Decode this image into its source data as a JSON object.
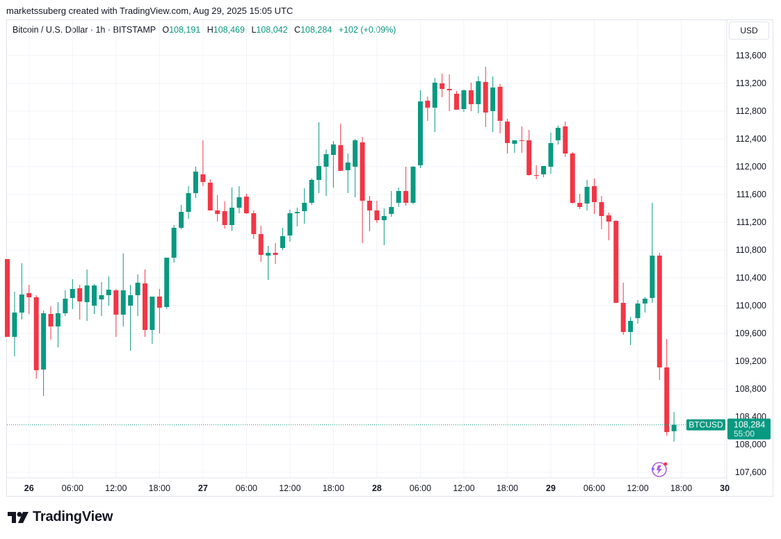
{
  "header": {
    "text": "marketssuberg created with TradingView.com, Aug 29, 2025 15:05 UTC"
  },
  "legend": {
    "symbol": "Bitcoin / U.S. Dollar · 1h · BITSTAMP",
    "o_label": "O",
    "o_value": "108,191",
    "h_label": "H",
    "h_value": "108,469",
    "l_label": "L",
    "l_value": "108,042",
    "c_label": "C",
    "c_value": "108,284",
    "change": "+102 (+0.09%)"
  },
  "currency_button": "USD",
  "price_tag": {
    "ticker": "BTCUSD",
    "price": "108,284",
    "countdown": "55:00"
  },
  "logo": {
    "text": "TradingView"
  },
  "colors": {
    "up": "#089981",
    "down": "#f23645",
    "grid": "#f0f3fa",
    "text": "#131722",
    "tag": "#089981"
  },
  "chart_data": {
    "type": "candlestick",
    "y_ticks": [
      "113,600",
      "113,200",
      "112,800",
      "112,400",
      "112,000",
      "111,600",
      "111,200",
      "110,800",
      "110,400",
      "110,000",
      "109,600",
      "109,200",
      "108,800",
      "108,400",
      "108,000",
      "107,600"
    ],
    "x_ticks": [
      {
        "label": "26",
        "bold": true,
        "index": 3
      },
      {
        "label": "06:00",
        "bold": false,
        "index": 9
      },
      {
        "label": "12:00",
        "bold": false,
        "index": 15
      },
      {
        "label": "18:00",
        "bold": false,
        "index": 21
      },
      {
        "label": "27",
        "bold": true,
        "index": 27
      },
      {
        "label": "06:00",
        "bold": false,
        "index": 33
      },
      {
        "label": "12:00",
        "bold": false,
        "index": 39
      },
      {
        "label": "18:00",
        "bold": false,
        "index": 45
      },
      {
        "label": "28",
        "bold": true,
        "index": 51
      },
      {
        "label": "06:00",
        "bold": false,
        "index": 57
      },
      {
        "label": "12:00",
        "bold": false,
        "index": 63
      },
      {
        "label": "18:00",
        "bold": false,
        "index": 69
      },
      {
        "label": "29",
        "bold": true,
        "index": 75
      },
      {
        "label": "06:00",
        "bold": false,
        "index": 81
      },
      {
        "label": "12:00",
        "bold": false,
        "index": 87
      },
      {
        "label": "18:00",
        "bold": false,
        "index": 93
      },
      {
        "label": "30",
        "bold": true,
        "index": 99
      }
    ],
    "y_range": [
      107300,
      113900
    ],
    "last_price": 108284,
    "candles": [
      {
        "o": 110670,
        "h": 110670,
        "l": 109550,
        "c": 109550
      },
      {
        "o": 109550,
        "h": 110200,
        "l": 109270,
        "c": 109900
      },
      {
        "o": 109900,
        "h": 110610,
        "l": 109800,
        "c": 110160
      },
      {
        "o": 110180,
        "h": 110300,
        "l": 109880,
        "c": 110120
      },
      {
        "o": 110120,
        "h": 110150,
        "l": 108950,
        "c": 109070
      },
      {
        "o": 109080,
        "h": 109930,
        "l": 108700,
        "c": 109890
      },
      {
        "o": 109880,
        "h": 109990,
        "l": 109510,
        "c": 109700
      },
      {
        "o": 109700,
        "h": 110050,
        "l": 109400,
        "c": 109890
      },
      {
        "o": 109890,
        "h": 110220,
        "l": 109850,
        "c": 110100
      },
      {
        "o": 110110,
        "h": 110380,
        "l": 109950,
        "c": 110240
      },
      {
        "o": 110250,
        "h": 110300,
        "l": 109800,
        "c": 110060
      },
      {
        "o": 110050,
        "h": 110520,
        "l": 109780,
        "c": 110290
      },
      {
        "o": 110000,
        "h": 110310,
        "l": 109880,
        "c": 110290
      },
      {
        "o": 110090,
        "h": 110340,
        "l": 109850,
        "c": 110150
      },
      {
        "o": 110150,
        "h": 110420,
        "l": 110000,
        "c": 110230
      },
      {
        "o": 110220,
        "h": 110240,
        "l": 109550,
        "c": 109870
      },
      {
        "o": 109870,
        "h": 110750,
        "l": 109700,
        "c": 110220
      },
      {
        "o": 110000,
        "h": 110300,
        "l": 109350,
        "c": 110150
      },
      {
        "o": 110150,
        "h": 110450,
        "l": 109850,
        "c": 110330
      },
      {
        "o": 110320,
        "h": 110520,
        "l": 109550,
        "c": 109650
      },
      {
        "o": 109650,
        "h": 110130,
        "l": 109450,
        "c": 110130
      },
      {
        "o": 110130,
        "h": 110240,
        "l": 109600,
        "c": 109970
      },
      {
        "o": 109980,
        "h": 110690,
        "l": 109950,
        "c": 110690
      },
      {
        "o": 110690,
        "h": 111160,
        "l": 110620,
        "c": 111120
      },
      {
        "o": 111120,
        "h": 111450,
        "l": 111100,
        "c": 111350
      },
      {
        "o": 111350,
        "h": 111720,
        "l": 111250,
        "c": 111620
      },
      {
        "o": 111620,
        "h": 112000,
        "l": 111550,
        "c": 111930
      },
      {
        "o": 111890,
        "h": 112380,
        "l": 111720,
        "c": 111780
      },
      {
        "o": 111770,
        "h": 111820,
        "l": 111370,
        "c": 111370
      },
      {
        "o": 111370,
        "h": 111590,
        "l": 111210,
        "c": 111320
      },
      {
        "o": 111360,
        "h": 111500,
        "l": 111110,
        "c": 111160
      },
      {
        "o": 111160,
        "h": 111700,
        "l": 111080,
        "c": 111410
      },
      {
        "o": 111410,
        "h": 111720,
        "l": 111330,
        "c": 111560
      },
      {
        "o": 111570,
        "h": 111610,
        "l": 111320,
        "c": 111330
      },
      {
        "o": 111330,
        "h": 111370,
        "l": 110960,
        "c": 111030
      },
      {
        "o": 111030,
        "h": 111150,
        "l": 110630,
        "c": 110730
      },
      {
        "o": 110720,
        "h": 110860,
        "l": 110370,
        "c": 110760
      },
      {
        "o": 110760,
        "h": 110900,
        "l": 110600,
        "c": 110730
      },
      {
        "o": 110830,
        "h": 111120,
        "l": 110800,
        "c": 111000
      },
      {
        "o": 111010,
        "h": 111380,
        "l": 110920,
        "c": 111330
      },
      {
        "o": 111330,
        "h": 111410,
        "l": 111140,
        "c": 111350
      },
      {
        "o": 111360,
        "h": 111690,
        "l": 111180,
        "c": 111480
      },
      {
        "o": 111480,
        "h": 111830,
        "l": 111450,
        "c": 111810
      },
      {
        "o": 111810,
        "h": 112640,
        "l": 111620,
        "c": 112010
      },
      {
        "o": 112000,
        "h": 112250,
        "l": 111580,
        "c": 112180
      },
      {
        "o": 112170,
        "h": 112370,
        "l": 111700,
        "c": 112320
      },
      {
        "o": 112310,
        "h": 112620,
        "l": 111950,
        "c": 111940
      },
      {
        "o": 111950,
        "h": 112190,
        "l": 111620,
        "c": 112060
      },
      {
        "o": 112000,
        "h": 112400,
        "l": 111560,
        "c": 112380
      },
      {
        "o": 112350,
        "h": 112430,
        "l": 110900,
        "c": 111510
      },
      {
        "o": 111510,
        "h": 111580,
        "l": 111070,
        "c": 111370
      },
      {
        "o": 111370,
        "h": 111510,
        "l": 111190,
        "c": 111230
      },
      {
        "o": 111230,
        "h": 111400,
        "l": 110870,
        "c": 111290
      },
      {
        "o": 111320,
        "h": 111650,
        "l": 111280,
        "c": 111420
      },
      {
        "o": 111480,
        "h": 111700,
        "l": 111420,
        "c": 111650
      },
      {
        "o": 111650,
        "h": 112000,
        "l": 111440,
        "c": 111480
      },
      {
        "o": 111480,
        "h": 112010,
        "l": 111460,
        "c": 112000
      },
      {
        "o": 112020,
        "h": 113100,
        "l": 111980,
        "c": 112940
      },
      {
        "o": 112950,
        "h": 113010,
        "l": 112660,
        "c": 112850
      },
      {
        "o": 112850,
        "h": 113280,
        "l": 112500,
        "c": 113210
      },
      {
        "o": 113200,
        "h": 113340,
        "l": 113000,
        "c": 113120
      },
      {
        "o": 113120,
        "h": 113330,
        "l": 112800,
        "c": 113100
      },
      {
        "o": 113050,
        "h": 113090,
        "l": 112830,
        "c": 112820
      },
      {
        "o": 112830,
        "h": 113110,
        "l": 112790,
        "c": 113100
      },
      {
        "o": 113100,
        "h": 113210,
        "l": 112800,
        "c": 112900
      },
      {
        "o": 112900,
        "h": 113300,
        "l": 112770,
        "c": 113230
      },
      {
        "o": 113220,
        "h": 113440,
        "l": 112570,
        "c": 112780
      },
      {
        "o": 112800,
        "h": 113300,
        "l": 112500,
        "c": 113140
      },
      {
        "o": 113150,
        "h": 113190,
        "l": 112480,
        "c": 112660
      },
      {
        "o": 112650,
        "h": 112690,
        "l": 112190,
        "c": 112340
      },
      {
        "o": 112330,
        "h": 112380,
        "l": 112200,
        "c": 112380
      },
      {
        "o": 112380,
        "h": 112580,
        "l": 112200,
        "c": 112370
      },
      {
        "o": 112380,
        "h": 112530,
        "l": 111870,
        "c": 111880
      },
      {
        "o": 111880,
        "h": 112020,
        "l": 111820,
        "c": 111870
      },
      {
        "o": 111890,
        "h": 112000,
        "l": 111850,
        "c": 112010
      },
      {
        "o": 112000,
        "h": 112490,
        "l": 111900,
        "c": 112340
      },
      {
        "o": 112380,
        "h": 112590,
        "l": 112320,
        "c": 112560
      },
      {
        "o": 112580,
        "h": 112650,
        "l": 112140,
        "c": 112190
      },
      {
        "o": 112190,
        "h": 112210,
        "l": 111470,
        "c": 111480
      },
      {
        "o": 111480,
        "h": 111610,
        "l": 111390,
        "c": 111420
      },
      {
        "o": 111470,
        "h": 111810,
        "l": 111370,
        "c": 111710
      },
      {
        "o": 111720,
        "h": 111830,
        "l": 111320,
        "c": 111490
      },
      {
        "o": 111490,
        "h": 111580,
        "l": 111100,
        "c": 111290
      },
      {
        "o": 111300,
        "h": 111340,
        "l": 110940,
        "c": 111210
      },
      {
        "o": 111220,
        "h": 111230,
        "l": 110040,
        "c": 110040
      },
      {
        "o": 110040,
        "h": 110330,
        "l": 109580,
        "c": 109620
      },
      {
        "o": 109620,
        "h": 109840,
        "l": 109430,
        "c": 109780
      },
      {
        "o": 109820,
        "h": 110080,
        "l": 109740,
        "c": 110030
      },
      {
        "o": 110030,
        "h": 110120,
        "l": 109900,
        "c": 110100
      },
      {
        "o": 110110,
        "h": 111480,
        "l": 110040,
        "c": 110720
      },
      {
        "o": 110720,
        "h": 110760,
        "l": 108930,
        "c": 109110
      },
      {
        "o": 109110,
        "h": 109520,
        "l": 108130,
        "c": 108180
      },
      {
        "o": 108191,
        "h": 108469,
        "l": 108042,
        "c": 108284
      }
    ]
  }
}
